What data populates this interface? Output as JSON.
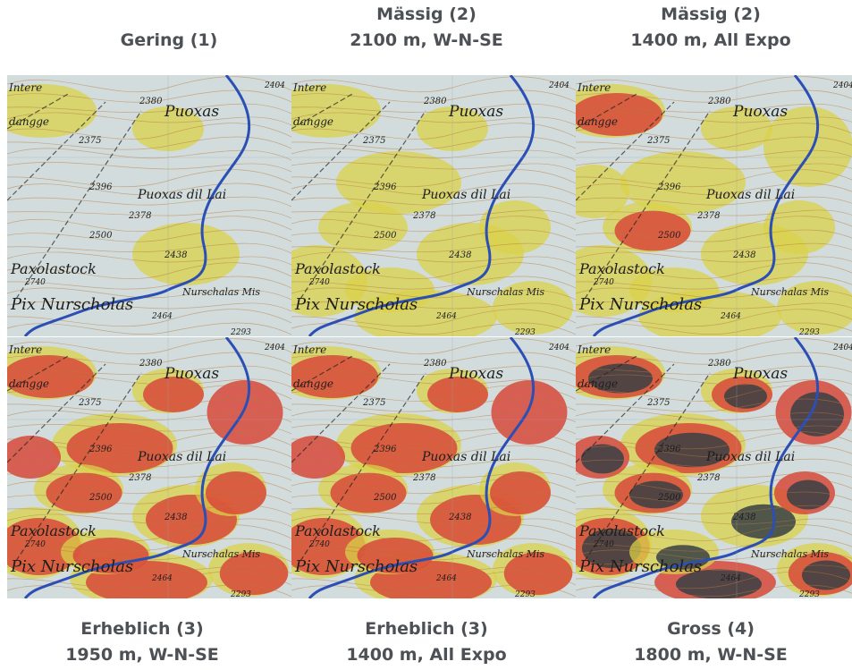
{
  "captions": {
    "top_left": {
      "line1": "Gering (1)",
      "line2": ""
    },
    "top_middle": {
      "line1": "Mässig (2)",
      "line2": "2100 m, W-N-SE"
    },
    "top_right": {
      "line1": "Mässig (2)",
      "line2": "1400 m, All Expo"
    },
    "bottom_left": {
      "line1": "Erheblich (3)",
      "line2": "1950 m, W-N-SE"
    },
    "bottom_middle": {
      "line1": "Erheblich (3)",
      "line2": "1400 m, All Expo"
    },
    "bottom_right": {
      "line1": "Gross (4)",
      "line2": "1800 m, W-N-SE"
    }
  },
  "map_labels": {
    "place_puoxas": "Puoxas",
    "place_puoxas_dil_lai": "Puoxas dil Lai",
    "peak_paxolastock": "Paxolastock",
    "peak_pix_nurscholas": "Pix Nurscholas",
    "place_nurschalas": "Nurschalas Mis",
    "place_intere": "Intere",
    "place_dangge": "dangge",
    "elev_2380": "2380",
    "elev_2375": "2375",
    "elev_2396": "2396",
    "elev_2378": "2378",
    "elev_2500": "2500",
    "elev_2438": "2438",
    "elev_2740": "2740",
    "elev_2464": "2464",
    "elev_2293": "2293",
    "elev_2404": "2404"
  },
  "colors": {
    "base_map": "#c7d3d6",
    "low_risk_yellow": "#d9d24a",
    "high_risk_red": "#d8483a",
    "very_high_dark": "#3a3f44",
    "river": "#2b4fb5",
    "caption_text": "#4d5156"
  }
}
